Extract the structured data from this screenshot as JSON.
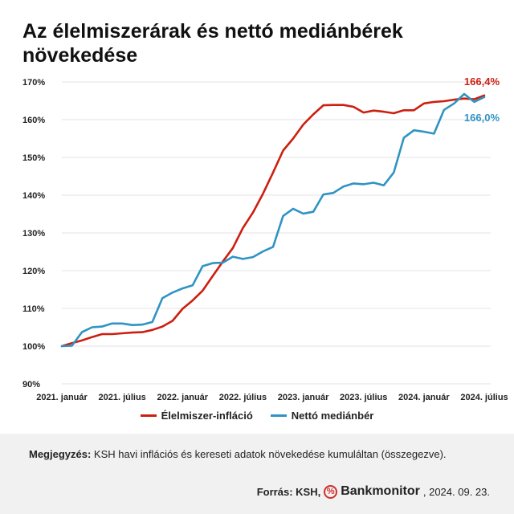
{
  "colors": {
    "food": "#cc1f10",
    "wage": "#2f93c4",
    "grid": "#e3e3e3"
  },
  "chart_data": {
    "type": "line",
    "title": "Az élelmiszerárak és nettó mediánbérek növekedése",
    "ylim": [
      90,
      170
    ],
    "yticks": [
      "90%",
      "100%",
      "110%",
      "120%",
      "130%",
      "140%",
      "150%",
      "160%",
      "170%"
    ],
    "xticks": [
      {
        "i": 0,
        "label": "2021. január"
      },
      {
        "i": 6,
        "label": "2021. július"
      },
      {
        "i": 12,
        "label": "2022. január"
      },
      {
        "i": 18,
        "label": "2022. július"
      },
      {
        "i": 24,
        "label": "2023. január"
      },
      {
        "i": 30,
        "label": "2023. július"
      },
      {
        "i": 36,
        "label": "2024. január"
      },
      {
        "i": 42,
        "label": "2024. július"
      }
    ],
    "n_points": 43,
    "series": [
      {
        "name": "Élelmiszer-infláció",
        "end_label": "166,4%",
        "values": [
          100.0,
          100.8,
          101.5,
          102.4,
          103.2,
          103.2,
          103.4,
          103.6,
          103.7,
          104.3,
          105.2,
          106.7,
          109.9,
          112.1,
          114.7,
          118.6,
          122.4,
          126.0,
          131.3,
          135.4,
          140.4,
          146.0,
          151.8,
          155.0,
          158.7,
          161.4,
          163.8,
          163.9,
          163.9,
          163.4,
          161.9,
          162.4,
          162.1,
          161.7,
          162.5,
          162.5,
          164.3,
          164.7,
          164.9,
          165.3,
          165.6,
          165.4,
          166.4
        ]
      },
      {
        "name": "Nettó mediánbér",
        "end_label": "166,0%",
        "values": [
          100.0,
          100.1,
          103.7,
          105.0,
          105.2,
          106.0,
          106.0,
          105.6,
          105.7,
          106.4,
          112.7,
          114.2,
          115.3,
          116.1,
          121.2,
          122.0,
          122.1,
          123.7,
          123.1,
          123.6,
          125.1,
          126.3,
          134.5,
          136.4,
          135.1,
          135.6,
          140.2,
          140.6,
          142.3,
          143.1,
          142.9,
          143.3,
          142.6,
          146.0,
          155.2,
          157.2,
          156.8,
          156.3,
          162.6,
          164.3,
          166.8,
          164.7,
          166.0
        ]
      }
    ]
  },
  "legend": {
    "food": "Élelmiszer-infláció",
    "wage": "Nettó mediánbér"
  },
  "note": {
    "label": "Megjegyzés:",
    "text": " KSH havi inflációs és kereseti adatok növekedése kumuláltan (összegezve)."
  },
  "source": {
    "label": "Forrás: KSH,",
    "brand": "Bankmonitor",
    "date": ", 2024. 09. 23.",
    "icon": "%"
  }
}
